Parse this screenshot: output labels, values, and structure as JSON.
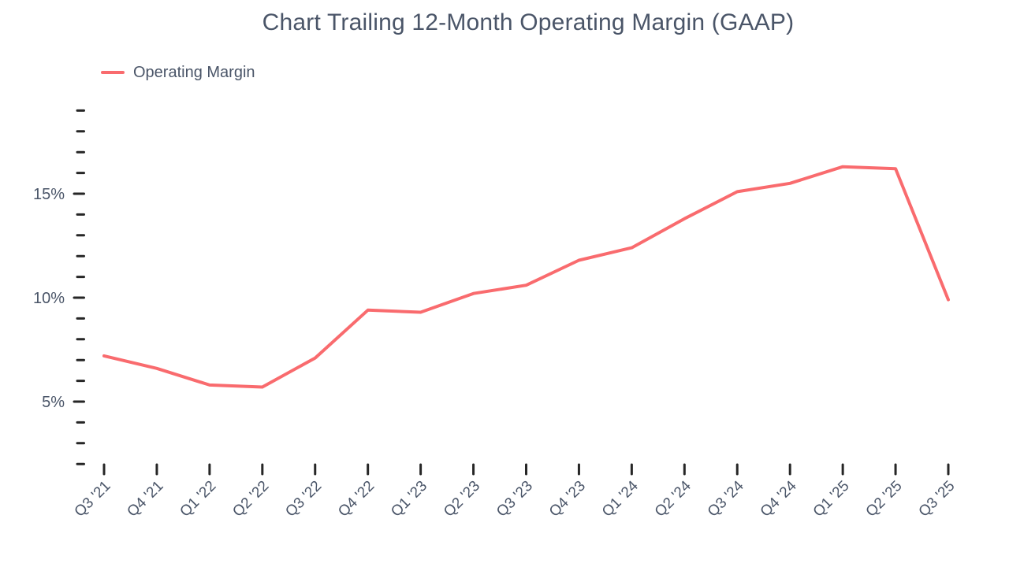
{
  "title": "Chart Trailing 12-Month Operating Margin (GAAP)",
  "legend": {
    "label": "Operating Margin",
    "swatch_color": "#f96b6e"
  },
  "colors": {
    "background": "#ffffff",
    "text": "#4a5568",
    "tick": "#262626",
    "line": "#f96b6e"
  },
  "chart_data": {
    "type": "line",
    "title": "Chart Trailing 12-Month Operating Margin (GAAP)",
    "categories": [
      "Q3 '21",
      "Q4 '21",
      "Q1 '22",
      "Q2 '22",
      "Q3 '22",
      "Q4 '22",
      "Q1 '23",
      "Q2 '23",
      "Q3 '23",
      "Q4 '23",
      "Q1 '24",
      "Q2 '24",
      "Q3 '24",
      "Q4 '24",
      "Q1 '25",
      "Q2 '25",
      "Q3 '25"
    ],
    "series": [
      {
        "name": "Operating Margin",
        "color": "#f96b6e",
        "values": [
          7.2,
          6.6,
          5.8,
          5.7,
          7.1,
          9.4,
          9.3,
          10.2,
          10.6,
          11.8,
          12.4,
          13.8,
          15.1,
          15.5,
          16.3,
          16.2,
          9.9
        ]
      }
    ],
    "xlabel": "",
    "ylabel": "",
    "y_axis": {
      "unit": "%",
      "range": [
        2,
        19
      ],
      "minor_tick_step": 1,
      "major_ticks": [
        5,
        10,
        15
      ],
      "major_tick_labels": [
        "5%",
        "10%",
        "15%"
      ]
    },
    "grid": false,
    "legend_position": "top-left",
    "x_tick_label_rotation_deg": -45
  }
}
